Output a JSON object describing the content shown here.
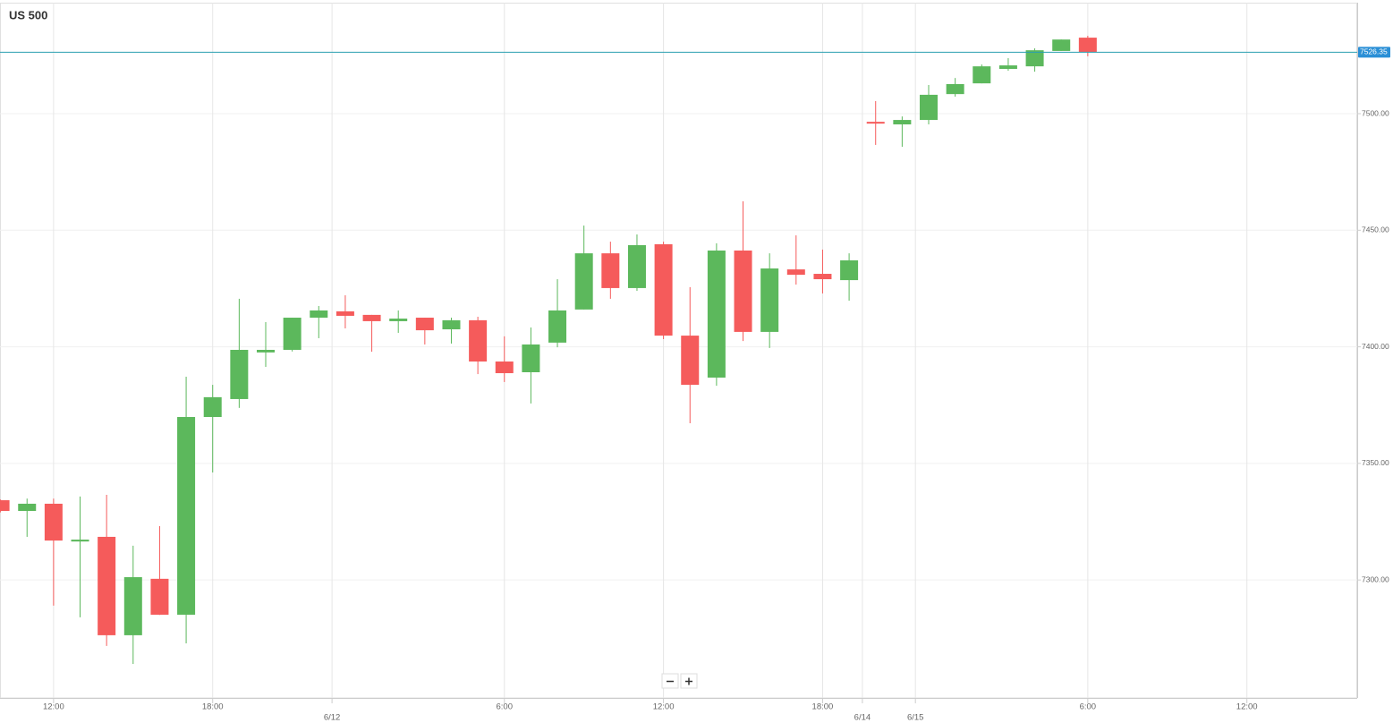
{
  "chart_data": {
    "type": "candlestick",
    "title": "US 500",
    "x": [
      0,
      1,
      2,
      3,
      4,
      5,
      6,
      7,
      8,
      9,
      10,
      11,
      12,
      13,
      14,
      15,
      16,
      17,
      18,
      19,
      20,
      21,
      22,
      23,
      24,
      25,
      26,
      27,
      28,
      29,
      30,
      31,
      32,
      33,
      34,
      35,
      36,
      37,
      38,
      39,
      40,
      41
    ],
    "open": [
      7334.2,
      7329.6,
      7332.7,
      7316.5,
      7318.5,
      7276.3,
      7300.5,
      7285.1,
      7369.9,
      7377.6,
      7397.6,
      7398.7,
      7412.5,
      7415.2,
      7413.7,
      7411.0,
      7412.5,
      7407.5,
      7411.4,
      7393.7,
      7389.1,
      7401.8,
      7416.0,
      7440.1,
      7425.2,
      7444.0,
      7404.8,
      7386.8,
      7441.3,
      7406.4,
      7433.2,
      7431.3,
      7428.6,
      7496.5,
      7495.4,
      7497.3,
      7508.4,
      7513.0,
      7519.2,
      7520.3,
      7526.9,
      7532.6
    ],
    "high": [
      7334.5,
      7334.9,
      7334.9,
      7335.8,
      7336.5,
      7314.7,
      7323.1,
      7387.2,
      7383.7,
      7420.6,
      7410.6,
      7412.5,
      7417.5,
      7422.1,
      7413.7,
      7415.6,
      7412.5,
      7412.5,
      7412.9,
      7404.5,
      7408.3,
      7429.0,
      7452.0,
      7445.1,
      7448.2,
      7445.1,
      7425.6,
      7444.4,
      7462.4,
      7440.1,
      7447.8,
      7441.7,
      7440.1,
      7505.4,
      7498.8,
      7512.3,
      7515.3,
      7521.1,
      7523.8,
      7528.0,
      7531.8,
      7533.4
    ],
    "low": [
      7329.0,
      7318.5,
      7289.0,
      7284.0,
      7271.7,
      7264.0,
      7285.0,
      7272.8,
      7346.1,
      7373.8,
      7391.4,
      7398.0,
      7403.7,
      7407.9,
      7397.9,
      7406.0,
      7401.0,
      7401.4,
      7388.3,
      7384.9,
      7375.7,
      7399.8,
      7416.0,
      7420.6,
      7424.0,
      7403.3,
      7367.2,
      7383.3,
      7402.5,
      7399.5,
      7426.7,
      7422.9,
      7419.8,
      7486.6,
      7485.8,
      7495.4,
      7507.3,
      7513.0,
      7518.4,
      7518.0,
      7526.9,
      7524.6
    ],
    "close": [
      7329.6,
      7332.7,
      7316.9,
      7317.3,
      7276.3,
      7301.2,
      7285.1,
      7369.9,
      7378.4,
      7398.7,
      7398.7,
      7412.5,
      7415.6,
      7413.3,
      7411.0,
      7412.1,
      7407.1,
      7411.4,
      7393.7,
      7388.7,
      7401.0,
      7415.6,
      7440.1,
      7425.2,
      7443.6,
      7404.8,
      7383.7,
      7441.3,
      7406.4,
      7433.6,
      7430.9,
      7429.0,
      7437.1,
      7495.8,
      7497.3,
      7508.1,
      7512.7,
      7520.3,
      7520.7,
      7527.2,
      7531.8,
      7526.35
    ],
    "up_color": "#5cb85c",
    "down_color": "#f55b5b",
    "current_price": 7526.35,
    "current_price_color": "#2a9fb0",
    "xlim": [
      -0.02,
      51.16
    ],
    "xticks": [
      {
        "value": 2,
        "label": "12:00"
      },
      {
        "value": 8,
        "label": "18:00"
      },
      {
        "value": 19,
        "label": "6:00"
      },
      {
        "value": 25,
        "label": "12:00"
      },
      {
        "value": 31,
        "label": "18:00"
      },
      {
        "value": 41,
        "label": "6:00"
      },
      {
        "value": 47,
        "label": "12:00"
      }
    ],
    "date_ticks": [
      {
        "value": 12.5,
        "label": "6/12"
      },
      {
        "value": 32.5,
        "label": "6/14"
      },
      {
        "value": 34.5,
        "label": "6/15"
      }
    ],
    "ylim": [
      7249.4,
      7547.6
    ],
    "yticks": [
      {
        "value": 7300,
        "label": "7300.00"
      },
      {
        "value": 7350,
        "label": "7350.00"
      },
      {
        "value": 7400,
        "label": "7400.00"
      },
      {
        "value": 7450,
        "label": "7450.00"
      },
      {
        "value": 7500,
        "label": "7500.00"
      }
    ],
    "grid": true
  }
}
